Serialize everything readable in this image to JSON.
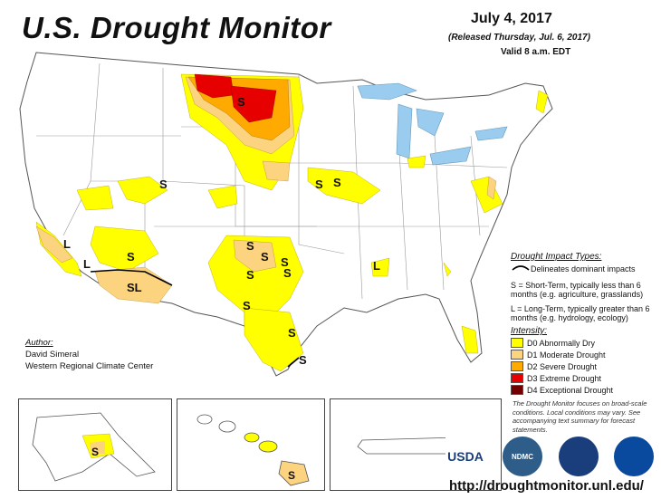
{
  "header": {
    "title": "U.S. Drought Monitor",
    "date": "July 4, 2017",
    "released": "(Released Thursday, Jul. 6, 2017)",
    "valid": "Valid 8 a.m. EDT"
  },
  "map_labels": [
    "L",
    "L",
    "SL",
    "S",
    "S",
    "S",
    "S",
    "S",
    "S",
    "S",
    "S",
    "S",
    "S",
    "L",
    "S",
    "S",
    "S"
  ],
  "legend": {
    "impact_title": "Drought Impact Types:",
    "delineates": "Delineates dominant impacts",
    "short_term": "S = Short-Term, typically less than 6 months (e.g. agriculture, grasslands)",
    "long_term": "L = Long-Term, typically greater than 6 months (e.g. hydrology, ecology)",
    "intensity_title": "Intensity:",
    "items": [
      {
        "label": "D0 Abnormally Dry",
        "color": "#ffff00"
      },
      {
        "label": "D1 Moderate Drought",
        "color": "#fcd37f"
      },
      {
        "label": "D2 Severe Drought",
        "color": "#ffaa00"
      },
      {
        "label": "D3 Extreme Drought",
        "color": "#e60000"
      },
      {
        "label": "D4 Exceptional Drought",
        "color": "#730000"
      }
    ]
  },
  "author": {
    "heading": "Author:",
    "name": "David Simeral",
    "org": "Western Regional Climate Center"
  },
  "note": "The Drought Monitor focuses on broad-scale conditions. Local conditions may vary. See accompanying text summary for forecast statements.",
  "url": "http://droughtmonitor.unl.edu/",
  "logos": [
    "USDA",
    "NDMC",
    "",
    ""
  ]
}
